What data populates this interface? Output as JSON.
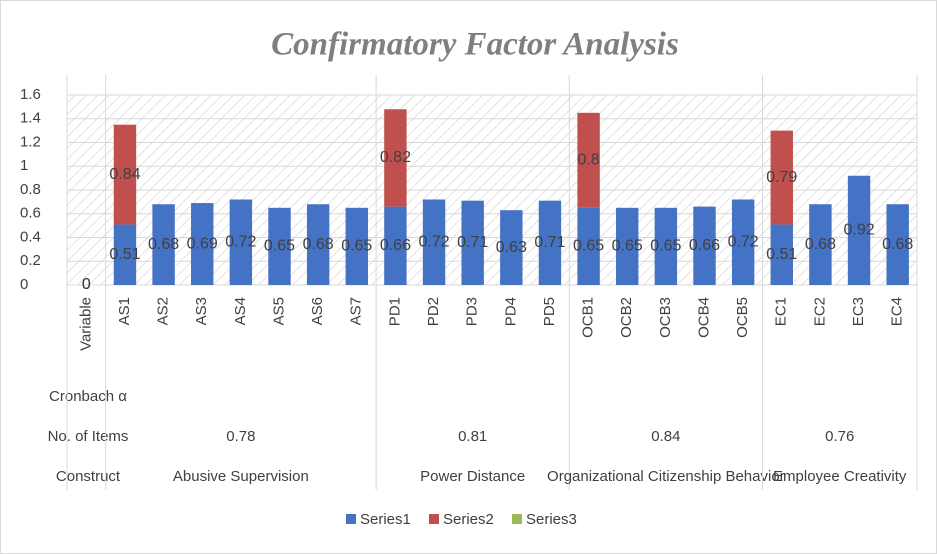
{
  "chart_data": {
    "type": "bar",
    "stacked": true,
    "title": "Confirmatory Factor Analysis",
    "row_labels": [
      "Cronbach α",
      "No. of Items",
      "Construct"
    ],
    "groups": [
      {
        "categories": [
          "Variable"
        ]
      },
      {
        "construct": "Abusive Supervision",
        "items": 0.78,
        "categories": [
          "AS1",
          "AS2",
          "AS3",
          "AS4",
          "AS5",
          "AS6",
          "AS7"
        ]
      },
      {
        "construct": "Power Distance",
        "items": 0.81,
        "categories": [
          "PD1",
          "PD2",
          "PD3",
          "PD4",
          "PD5"
        ]
      },
      {
        "construct": "Organizational Citizenship Behavior",
        "items": 0.84,
        "categories": [
          "OCB1",
          "OCB2",
          "OCB3",
          "OCB4",
          "OCB5"
        ]
      },
      {
        "construct": "Employee Creativity",
        "items": 0.76,
        "categories": [
          "EC1",
          "EC2",
          "EC3",
          "EC4"
        ]
      }
    ],
    "series": [
      {
        "name": "Series1",
        "color": "#4472c4",
        "values": [
          0,
          0.51,
          0.68,
          0.69,
          0.72,
          0.65,
          0.68,
          0.65,
          0.66,
          0.72,
          0.71,
          0.63,
          0.71,
          0.65,
          0.65,
          0.65,
          0.66,
          0.72,
          0.51,
          0.68,
          0.92,
          0.68
        ]
      },
      {
        "name": "Series2",
        "color": "#c0504d",
        "values": [
          0,
          0.84,
          null,
          null,
          null,
          null,
          null,
          null,
          0.82,
          null,
          null,
          null,
          null,
          0.8,
          null,
          null,
          null,
          null,
          0.79,
          null,
          null,
          null
        ]
      },
      {
        "name": "Series3",
        "color": "#9bbb59",
        "values": [
          null,
          null,
          null,
          null,
          null,
          null,
          null,
          null,
          null,
          null,
          null,
          null,
          null,
          null,
          null,
          null,
          null,
          null,
          null,
          null,
          null,
          null
        ]
      }
    ],
    "ylim": [
      0,
      1.6
    ],
    "yticks": [
      0,
      0.2,
      0.4,
      0.6,
      0.8,
      1,
      1.2,
      1.4,
      1.6
    ],
    "grid": true,
    "legend": "bottom"
  }
}
